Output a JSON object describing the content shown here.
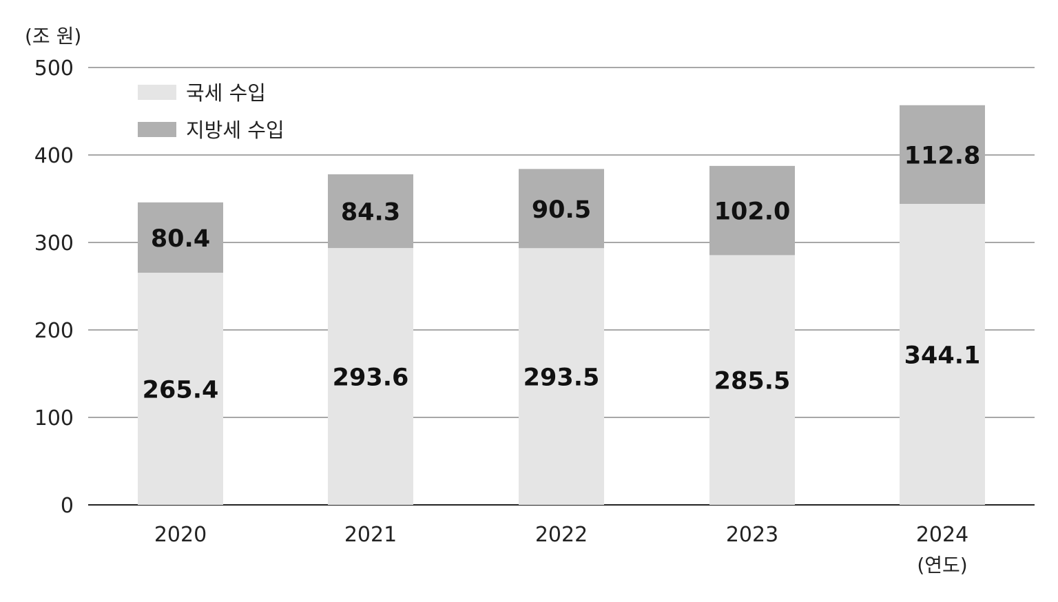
{
  "chart_data": {
    "type": "bar",
    "stacked": true,
    "y_unit_label": "(조 원)",
    "x_unit_label": "(연도)",
    "categories": [
      "2020",
      "2021",
      "2022",
      "2023",
      "2024"
    ],
    "series": [
      {
        "name": "국세 수입",
        "color": "#e5e5e5",
        "values": [
          265.4,
          293.6,
          293.5,
          285.5,
          344.1
        ],
        "labels": [
          "265.4",
          "293.6",
          "293.5",
          "285.5",
          "344.1"
        ]
      },
      {
        "name": "지방세 수입",
        "color": "#b0b0b0",
        "values": [
          80.4,
          84.3,
          90.5,
          102.0,
          112.8
        ],
        "labels": [
          "80.4",
          "84.3",
          "90.5",
          "102.0",
          "112.8"
        ]
      }
    ],
    "ylim": [
      0,
      500
    ],
    "yticks": [
      "0",
      "100",
      "200",
      "300",
      "400",
      "500"
    ],
    "grid": true,
    "legend_position": "top-left"
  }
}
